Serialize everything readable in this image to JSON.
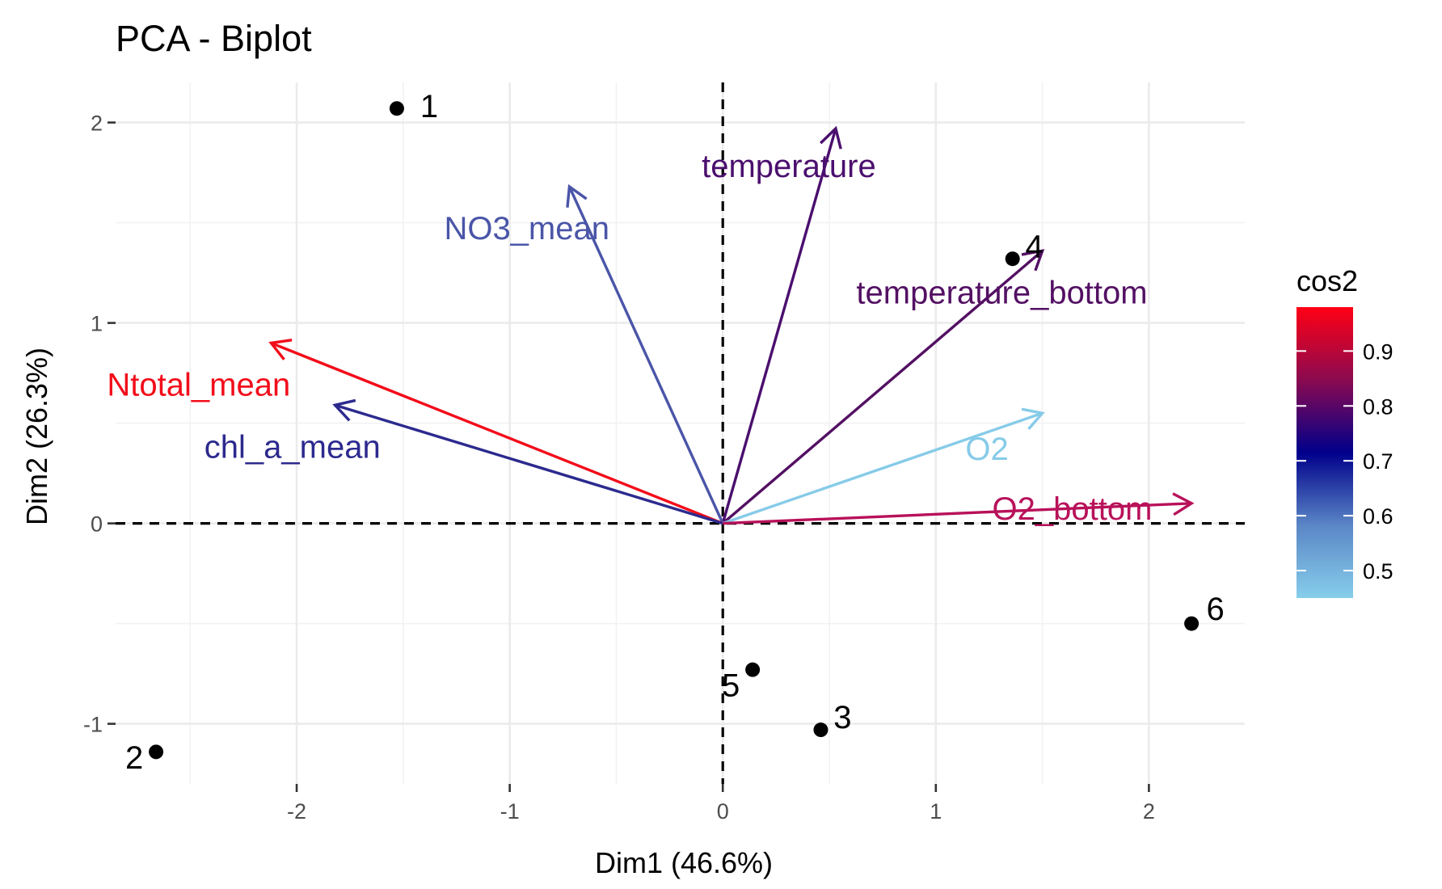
{
  "chart_data": {
    "type": "scatter",
    "title": "PCA - Biplot",
    "xlabel": "Dim1 (46.6%)",
    "ylabel": "Dim2 (26.3%)",
    "xlim": [
      -2.85,
      2.45
    ],
    "ylim": [
      -1.3,
      2.2
    ],
    "x_ticks": [
      -2,
      -1,
      0,
      1,
      2
    ],
    "y_ticks": [
      -1,
      0,
      1,
      2
    ],
    "grid": true,
    "individuals": [
      {
        "label": "1",
        "x": -1.53,
        "y": 2.07
      },
      {
        "label": "2",
        "x": -2.66,
        "y": -1.14
      },
      {
        "label": "3",
        "x": 0.46,
        "y": -1.03
      },
      {
        "label": "4",
        "x": 1.36,
        "y": 1.32
      },
      {
        "label": "5",
        "x": 0.14,
        "y": -0.73
      },
      {
        "label": "6",
        "x": 2.2,
        "y": -0.5
      }
    ],
    "variables": [
      {
        "label": "temperature",
        "x": 0.53,
        "y": 1.97,
        "cos2": 0.77,
        "color": "#4b0f6e"
      },
      {
        "label": "NO3_mean",
        "x": -0.72,
        "y": 1.68,
        "cos2": 0.62,
        "color": "#4a55a8"
      },
      {
        "label": "temperature_bottom",
        "x": 1.5,
        "y": 1.36,
        "cos2": 0.78,
        "color": "#531063"
      },
      {
        "label": "Ntotal_mean",
        "x": -2.12,
        "y": 0.9,
        "cos2": 0.98,
        "color": "#f20d1a"
      },
      {
        "label": "chl_a_mean",
        "x": -1.82,
        "y": 0.59,
        "cos2": 0.69,
        "color": "#2c2a8e"
      },
      {
        "label": "O2",
        "x": 1.5,
        "y": 0.55,
        "cos2": 0.47,
        "color": "#86cbe8"
      },
      {
        "label": "O2_bottom",
        "x": 2.2,
        "y": 0.1,
        "cos2": 0.86,
        "color": "#b8115a"
      }
    ],
    "legend": {
      "title": "cos2",
      "position": "right",
      "colorbar_stops": [
        "#87ceeb",
        "#5a86c6",
        "#00008b",
        "#8b0a50",
        "#ff0015"
      ],
      "range": [
        0.45,
        0.98
      ],
      "ticks": [
        0.5,
        0.6,
        0.7,
        0.8,
        0.9
      ]
    }
  }
}
